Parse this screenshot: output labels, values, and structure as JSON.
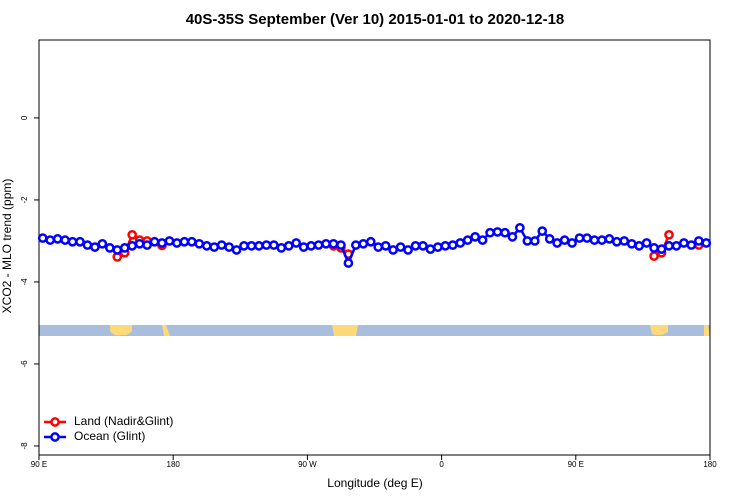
{
  "chart_data": {
    "type": "line",
    "title": "40S-35S September (Ver 10)   2015-01-01 to 2020-12-18",
    "xlabel": "Longitude (deg E)",
    "ylabel": "XCO2 - MLO trend (ppm)",
    "x": [
      92.5,
      97.5,
      102.5,
      107.5,
      112.5,
      117.5,
      122.5,
      127.5,
      132.5,
      137.5,
      142.5,
      147.5,
      152.5,
      157.5,
      162.5,
      167.5,
      172.5,
      177.5,
      182.5,
      187.5,
      192.5,
      197.5,
      202.5,
      207.5,
      212.5,
      217.5,
      222.5,
      227.5,
      232.5,
      237.5,
      242.5,
      247.5,
      252.5,
      257.5,
      262.5,
      267.5,
      272.5,
      277.5,
      282.5,
      287.5,
      292.5,
      297.5,
      302.5,
      307.5,
      312.5,
      317.5,
      322.5,
      327.5,
      332.5,
      337.5,
      342.5,
      347.5,
      352.5,
      357.5,
      362.5,
      367.5,
      372.5,
      377.5,
      382.5,
      387.5,
      392.5,
      397.5,
      402.5,
      407.5,
      412.5,
      417.5,
      422.5,
      427.5,
      432.5,
      437.5,
      442.5,
      447.5,
      452.5,
      457.5,
      462.5,
      467.5,
      472.5,
      477.5,
      482.5,
      487.5,
      492.5,
      497.5,
      502.5,
      507.5,
      512.5,
      517.5,
      522.5,
      527.5,
      532.5,
      537.5
    ],
    "series": [
      {
        "name": "Land (Nadir&Glint)",
        "color": "#ff0000",
        "values": [
          null,
          null,
          null,
          null,
          null,
          null,
          null,
          null,
          null,
          null,
          -3.39,
          -3.29,
          -2.85,
          -2.98,
          -3.0,
          null,
          -3.11,
          null,
          null,
          null,
          null,
          null,
          null,
          null,
          null,
          null,
          null,
          null,
          null,
          null,
          null,
          null,
          null,
          null,
          null,
          null,
          null,
          null,
          null,
          -3.12,
          -3.17,
          -3.32,
          null,
          null,
          null,
          null,
          null,
          null,
          null,
          null,
          null,
          null,
          null,
          null,
          null,
          null,
          null,
          null,
          null,
          null,
          null,
          null,
          null,
          null,
          null,
          null,
          null,
          null,
          null,
          null,
          null,
          null,
          null,
          null,
          null,
          null,
          null,
          null,
          null,
          null,
          null,
          null,
          -3.37,
          -3.29,
          -2.85,
          null,
          null,
          null,
          -3.1,
          null
        ]
      },
      {
        "name": "Ocean (Glint)",
        "color": "#0000ff",
        "values": [
          -2.93,
          -2.98,
          -2.95,
          -2.98,
          -3.02,
          -3.02,
          -3.1,
          -3.15,
          -3.07,
          -3.17,
          -3.22,
          -3.17,
          -3.12,
          -3.07,
          -3.1,
          -3.02,
          -3.05,
          -3.0,
          -3.05,
          -3.02,
          -3.02,
          -3.07,
          -3.12,
          -3.15,
          -3.1,
          -3.15,
          -3.22,
          -3.12,
          -3.12,
          -3.12,
          -3.1,
          -3.1,
          -3.17,
          -3.12,
          -3.05,
          -3.15,
          -3.12,
          -3.1,
          -3.07,
          -3.07,
          -3.1,
          -3.54,
          -3.1,
          -3.07,
          -3.02,
          -3.15,
          -3.12,
          -3.22,
          -3.15,
          -3.22,
          -3.12,
          -3.12,
          -3.2,
          -3.15,
          -3.12,
          -3.1,
          -3.05,
          -2.98,
          -2.9,
          -2.98,
          -2.8,
          -2.78,
          -2.8,
          -2.9,
          -2.68,
          -3.0,
          -3.0,
          -2.76,
          -2.95,
          -3.05,
          -2.98,
          -3.05,
          -2.93,
          -2.93,
          -2.98,
          -2.98,
          -2.95,
          -3.02,
          -3.0,
          -3.07,
          -3.12,
          -3.05,
          -3.17,
          -3.2,
          -3.12,
          -3.12,
          -3.05,
          -3.1,
          -3.0,
          -3.05
        ]
      }
    ],
    "xlim": [
      90,
      540
    ],
    "xticks": [
      {
        "value": 90,
        "label": "90 E"
      },
      180,
      {
        "value": 270,
        "label": "90 W"
      },
      {
        "value": 360,
        "label": "0"
      },
      {
        "value": 450,
        "label": "90 E"
      },
      {
        "value": 540,
        "label": "180"
      }
    ],
    "ylim": [
      -8.22,
      1.9
    ],
    "yticks": [
      0,
      -2,
      -4,
      -6,
      -8
    ],
    "legend": "bottom-left"
  }
}
